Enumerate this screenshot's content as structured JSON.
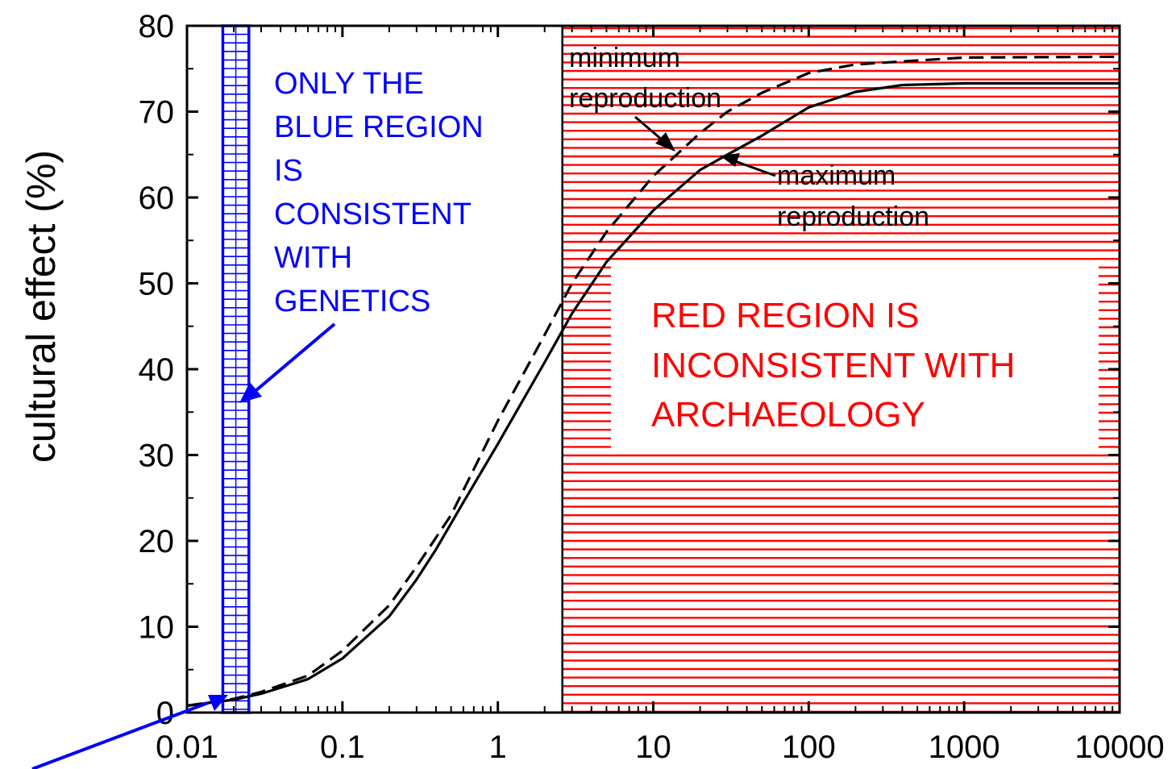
{
  "chart_data": {
    "type": "line",
    "title": "",
    "xlabel": "",
    "ylabel": "cultural effect (%)",
    "x_scale": "log",
    "xlim": [
      0.01,
      10000
    ],
    "ylim": [
      0,
      80
    ],
    "x_tick_labels": [
      "0.01",
      "0.1",
      "1",
      "10",
      "100",
      "1000",
      "10000"
    ],
    "x_ticks": [
      0.01,
      0.1,
      1,
      10,
      100,
      1000,
      10000
    ],
    "y_tick_labels": [
      "0",
      "10",
      "20",
      "30",
      "40",
      "50",
      "60",
      "70",
      "80"
    ],
    "y_ticks": [
      0,
      10,
      20,
      30,
      40,
      50,
      60,
      70,
      80
    ],
    "grid": false,
    "series": [
      {
        "style": "solid",
        "color": "#000000",
        "x": [
          0.01,
          0.02,
          0.03,
          0.06,
          0.1,
          0.2,
          0.3,
          0.4,
          0.6,
          1,
          2,
          3,
          5,
          10,
          20,
          30,
          50,
          100,
          200,
          400,
          1000,
          10000
        ],
        "y": [
          0.8,
          1.5,
          2.2,
          3.9,
          6.3,
          11.2,
          15.5,
          19.0,
          24.5,
          31.3,
          40.8,
          46.5,
          52.5,
          58.5,
          63.2,
          65.0,
          67.2,
          70.5,
          72.3,
          73.1,
          73.3,
          73.3
        ]
      },
      {
        "style": "dashed",
        "color": "#000000",
        "x": [
          0.01,
          0.02,
          0.03,
          0.06,
          0.1,
          0.2,
          0.3,
          0.5,
          1,
          2,
          3,
          5,
          10,
          20,
          30,
          50,
          100,
          200,
          1000,
          10000
        ],
        "y": [
          0.8,
          1.6,
          2.4,
          4.3,
          7.2,
          12.5,
          17.0,
          23.0,
          34.0,
          44.0,
          50.0,
          56.0,
          62.5,
          67.5,
          70.0,
          72.2,
          74.5,
          75.5,
          76.3,
          76.4
        ]
      }
    ],
    "annotations": {
      "minimum_label": [
        "minimum",
        "reproduction"
      ],
      "maximum_label": [
        "maximum",
        "reproduction"
      ],
      "blue_text": [
        "ONLY THE",
        "BLUE REGION",
        "IS",
        "CONSISTENT",
        "WITH",
        "GENETICS"
      ],
      "red_text": [
        "RED REGION IS",
        "INCONSISTENT WITH",
        "ARCHAEOLOGY"
      ]
    },
    "regions": {
      "blue": {
        "x_from": 0.017,
        "x_to": 0.025,
        "color": "#0000ff"
      },
      "red": {
        "x_from": 2.6,
        "x_to": 10000,
        "color": "#ff0000"
      }
    }
  }
}
